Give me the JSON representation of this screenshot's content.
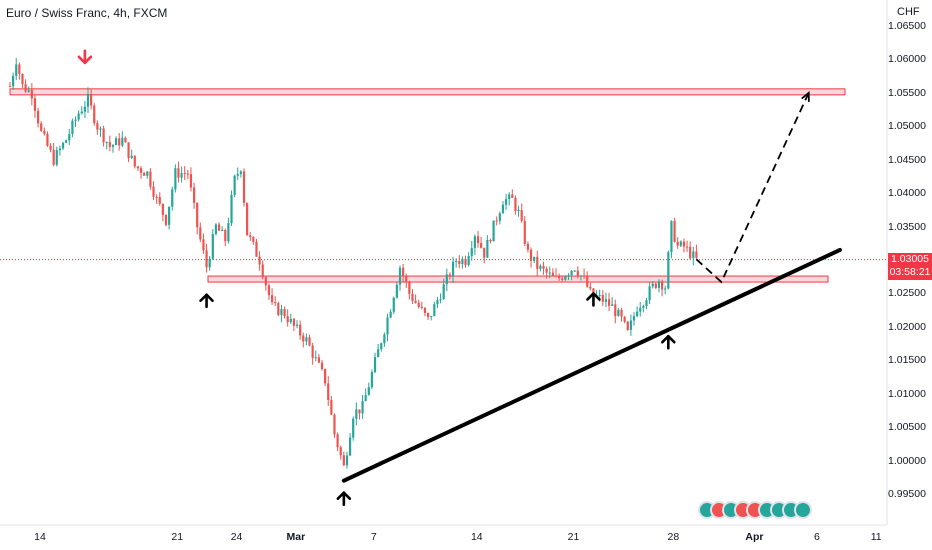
{
  "header": {
    "title": "Euro / Swiss Franc, 4h, FXCM",
    "currency": "CHF"
  },
  "last_price": {
    "value": "1.03005",
    "countdown": "03:58:21",
    "color": "#f23645"
  },
  "colors": {
    "up": "#26a69a",
    "down": "#ef5350",
    "zone_fill": "#f8c9cc",
    "zone_stroke": "#f23645"
  },
  "indicator_icons": [
    "flag-icon",
    "flag-icon",
    "flag-icon",
    "flag-icon",
    "flag-icon",
    "flag-icon",
    "flag-icon",
    "flag-icon",
    "flag-icon"
  ],
  "chart_data": {
    "type": "candlestick",
    "title": "Euro / Swiss Franc, 4h, FXCM",
    "ylabel": "CHF",
    "ylim": [
      0.993,
      1.067
    ],
    "y_ticks": [
      "1.06500",
      "1.06000",
      "1.05500",
      "1.05000",
      "1.04500",
      "1.04000",
      "1.03500",
      "1.03000",
      "1.02500",
      "1.02000",
      "1.01500",
      "1.01000",
      "1.00500",
      "1.00000",
      "0.99500"
    ],
    "x_ticks": [
      {
        "label": "14",
        "bar": 0
      },
      {
        "label": "21",
        "bar": 44
      },
      {
        "label": "24",
        "bar": 63
      },
      {
        "label": "Mar",
        "bar": 82,
        "bold": true
      },
      {
        "label": "7",
        "bar": 107
      },
      {
        "label": "14",
        "bar": 140
      },
      {
        "label": "21",
        "bar": 171
      },
      {
        "label": "28",
        "bar": 203
      },
      {
        "label": "Apr",
        "bar": 229,
        "bold": true
      },
      {
        "label": "6",
        "bar": 249
      },
      {
        "label": "11",
        "bar": 268
      }
    ],
    "close_path": [
      [
        0,
        1.056
      ],
      [
        2,
        1.06
      ],
      [
        4,
        1.056
      ],
      [
        7,
        1.055
      ],
      [
        10,
        1.049
      ],
      [
        14,
        1.045
      ],
      [
        18,
        1.048
      ],
      [
        22,
        1.052
      ],
      [
        25,
        1.054
      ],
      [
        28,
        1.05
      ],
      [
        32,
        1.047
      ],
      [
        36,
        1.048
      ],
      [
        40,
        1.044
      ],
      [
        44,
        1.043
      ],
      [
        47,
        1.039
      ],
      [
        50,
        1.036
      ],
      [
        53,
        1.043
      ],
      [
        57,
        1.043
      ],
      [
        60,
        1.035
      ],
      [
        63,
        1.029
      ],
      [
        66,
        1.035
      ],
      [
        69,
        1.033
      ],
      [
        72,
        1.042
      ],
      [
        74,
        1.044
      ],
      [
        76,
        1.034
      ],
      [
        80,
        1.03
      ],
      [
        84,
        1.023
      ],
      [
        88,
        1.022
      ],
      [
        91,
        1.02
      ],
      [
        95,
        1.018
      ],
      [
        98,
        1.015
      ],
      [
        101,
        1.012
      ],
      [
        104,
        1.004
      ],
      [
        107,
        0.999
      ],
      [
        110,
        1.007
      ],
      [
        113,
        1.008
      ],
      [
        116,
        1.013
      ],
      [
        119,
        1.018
      ],
      [
        122,
        1.023
      ],
      [
        125,
        1.029
      ],
      [
        128,
        1.025
      ],
      [
        131,
        1.023
      ],
      [
        134,
        1.021
      ],
      [
        137,
        1.024
      ],
      [
        140,
        1.027
      ],
      [
        143,
        1.03
      ],
      [
        146,
        1.03
      ],
      [
        149,
        1.034
      ],
      [
        152,
        1.031
      ],
      [
        155,
        1.035
      ],
      [
        158,
        1.039
      ],
      [
        161,
        1.039
      ],
      [
        163,
        1.037
      ],
      [
        166,
        1.031
      ],
      [
        169,
        1.029
      ],
      [
        172,
        1.028
      ],
      [
        175,
        1.027
      ],
      [
        178,
        1.028
      ],
      [
        181,
        1.029
      ],
      [
        184,
        1.027
      ],
      [
        186,
        1.025
      ],
      [
        190,
        1.024
      ],
      [
        193,
        1.023
      ],
      [
        196,
        1.021
      ],
      [
        198,
        1.019
      ],
      [
        201,
        1.023
      ],
      [
        203,
        1.024
      ],
      [
        206,
        1.026
      ],
      [
        208,
        1.027
      ],
      [
        210,
        1.026
      ],
      [
        212,
        1.035
      ],
      [
        214,
        1.032
      ],
      [
        216,
        1.032
      ],
      [
        218,
        1.031
      ],
      [
        220,
        1.03
      ]
    ],
    "annotations": {
      "resistance_zone": [
        1.0547,
        1.0556
      ],
      "support_zone": [
        1.0267,
        1.0276
      ],
      "trendline": [
        [
          107,
          0.997
        ],
        [
          266,
          1.0315
        ]
      ],
      "projection_path": [
        [
          220,
          1.0301
        ],
        [
          228,
          1.0267
        ],
        [
          256,
          1.055
        ]
      ],
      "last_price_line": 1.03005,
      "arrows_up": [
        [
          63,
          1.0248
        ],
        [
          107,
          0.9952
        ],
        [
          187,
          1.025
        ],
        [
          211,
          1.0186
        ]
      ],
      "arrows_down": [
        [
          24,
          1.0595
        ]
      ]
    }
  }
}
